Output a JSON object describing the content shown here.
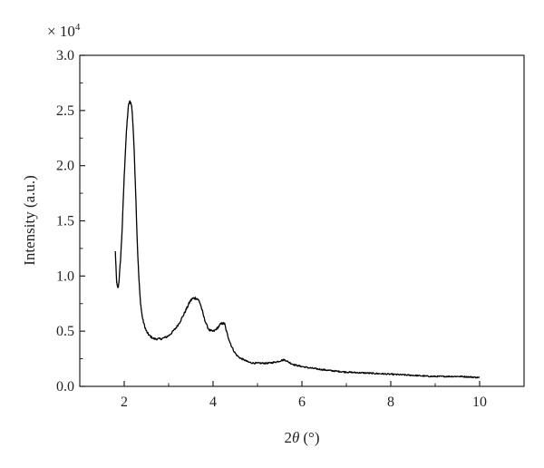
{
  "chart_data": {
    "type": "line",
    "xlabel": "2θ (°)",
    "xlabel_parts": {
      "symbol_prefix": "2",
      "symbol": "θ",
      "unit": "(°)"
    },
    "ylabel": "Intensity (a.u.)",
    "y_multiplier": {
      "base": "× 10",
      "exponent": "4"
    },
    "xlim": [
      1,
      11
    ],
    "ylim": [
      0,
      3.0
    ],
    "x_ticks": [
      2,
      4,
      6,
      8,
      10
    ],
    "x_tick_labels": [
      "2",
      "4",
      "6",
      "8",
      "10"
    ],
    "y_ticks": [
      0,
      0.5,
      1.0,
      1.5,
      2.0,
      2.5,
      3.0
    ],
    "y_tick_labels": [
      "0.0",
      "0.5",
      "1.0",
      "1.5",
      "2.0",
      "2.5",
      "3.0"
    ],
    "grid": false,
    "series": [
      {
        "color": "#000000",
        "x": [
          1.8,
          1.83,
          1.86,
          1.9,
          1.95,
          2.0,
          2.05,
          2.1,
          2.15,
          2.2,
          2.25,
          2.3,
          2.35,
          2.4,
          2.45,
          2.5,
          2.55,
          2.6,
          2.7,
          2.8,
          2.9,
          3.0,
          3.1,
          3.2,
          3.3,
          3.4,
          3.5,
          3.6,
          3.7,
          3.8,
          3.9,
          4.0,
          4.1,
          4.2,
          4.25,
          4.3,
          4.4,
          4.5,
          4.6,
          4.7,
          4.8,
          5.0,
          5.2,
          5.4,
          5.5,
          5.6,
          5.7,
          5.8,
          6.0,
          6.5,
          7.0,
          7.5,
          8.0,
          8.5,
          9.0,
          9.5,
          10.0
        ],
        "y": [
          1.22,
          0.95,
          0.9,
          1.05,
          1.4,
          1.9,
          2.3,
          2.55,
          2.57,
          2.35,
          1.85,
          1.25,
          0.85,
          0.65,
          0.56,
          0.5,
          0.47,
          0.45,
          0.43,
          0.43,
          0.44,
          0.46,
          0.5,
          0.55,
          0.62,
          0.7,
          0.78,
          0.8,
          0.76,
          0.62,
          0.52,
          0.5,
          0.53,
          0.57,
          0.57,
          0.5,
          0.38,
          0.3,
          0.26,
          0.24,
          0.22,
          0.21,
          0.21,
          0.22,
          0.23,
          0.24,
          0.22,
          0.2,
          0.18,
          0.15,
          0.13,
          0.12,
          0.11,
          0.1,
          0.09,
          0.09,
          0.08
        ]
      }
    ]
  }
}
